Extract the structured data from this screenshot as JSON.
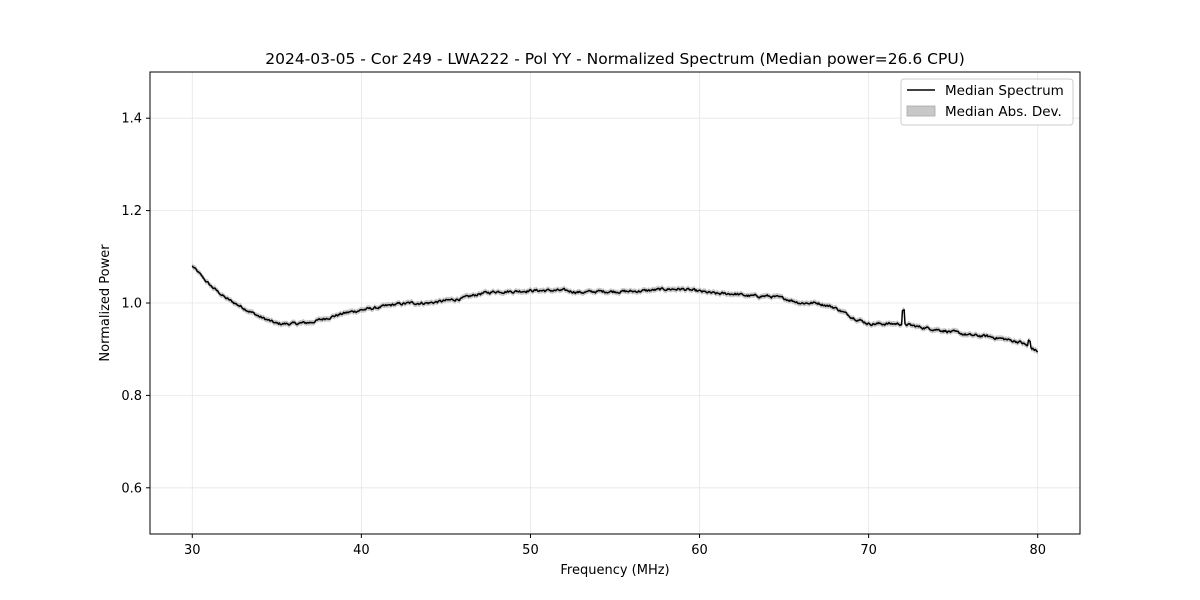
{
  "chart_data": {
    "type": "line",
    "title": "2024-03-05 - Cor 249 - LWA222 - Pol YY - Normalized Spectrum (Median power=26.6 CPU)",
    "xlabel": "Frequency (MHz)",
    "ylabel": "Normalized Power",
    "xlim": [
      27.5,
      82.5
    ],
    "ylim": [
      0.5,
      1.5
    ],
    "xticks": [
      30,
      40,
      50,
      60,
      70,
      80
    ],
    "yticks": [
      0.6,
      0.8,
      1.0,
      1.2,
      1.4
    ],
    "xtick_labels": [
      "30",
      "40",
      "50",
      "60",
      "70",
      "80"
    ],
    "ytick_labels": [
      "0.6",
      "0.8",
      "1.0",
      "1.2",
      "1.4"
    ],
    "grid": true,
    "legend_position": "top-right",
    "series": [
      {
        "name": "Median Spectrum",
        "color": "#000000",
        "x": [
          30,
          31,
          32,
          33,
          34,
          35,
          36,
          37,
          38,
          39,
          40,
          41,
          42,
          43,
          44,
          45,
          46,
          47,
          48,
          49,
          50,
          51,
          52,
          53,
          54,
          55,
          56,
          57,
          58,
          59,
          60,
          61,
          62,
          63,
          64,
          65,
          66,
          67,
          68,
          69,
          70,
          71,
          72,
          73,
          74,
          75,
          76,
          77,
          78,
          79,
          80
        ],
        "values": [
          1.08,
          1.04,
          1.01,
          0.99,
          0.97,
          0.955,
          0.955,
          0.958,
          0.968,
          0.978,
          0.985,
          0.99,
          0.997,
          1.0,
          1.0,
          1.005,
          1.01,
          1.02,
          1.025,
          1.025,
          1.027,
          1.027,
          1.027,
          1.023,
          1.025,
          1.025,
          1.025,
          1.027,
          1.03,
          1.03,
          1.025,
          1.02,
          1.02,
          1.015,
          1.015,
          1.01,
          1.0,
          1.0,
          0.99,
          0.97,
          0.955,
          0.955,
          0.955,
          0.948,
          0.943,
          0.937,
          0.93,
          0.928,
          0.922,
          0.915,
          0.895
        ]
      }
    ],
    "band": {
      "name": "Median Abs. Dev.",
      "color": "#c8c8c8",
      "width": 0.006
    }
  }
}
